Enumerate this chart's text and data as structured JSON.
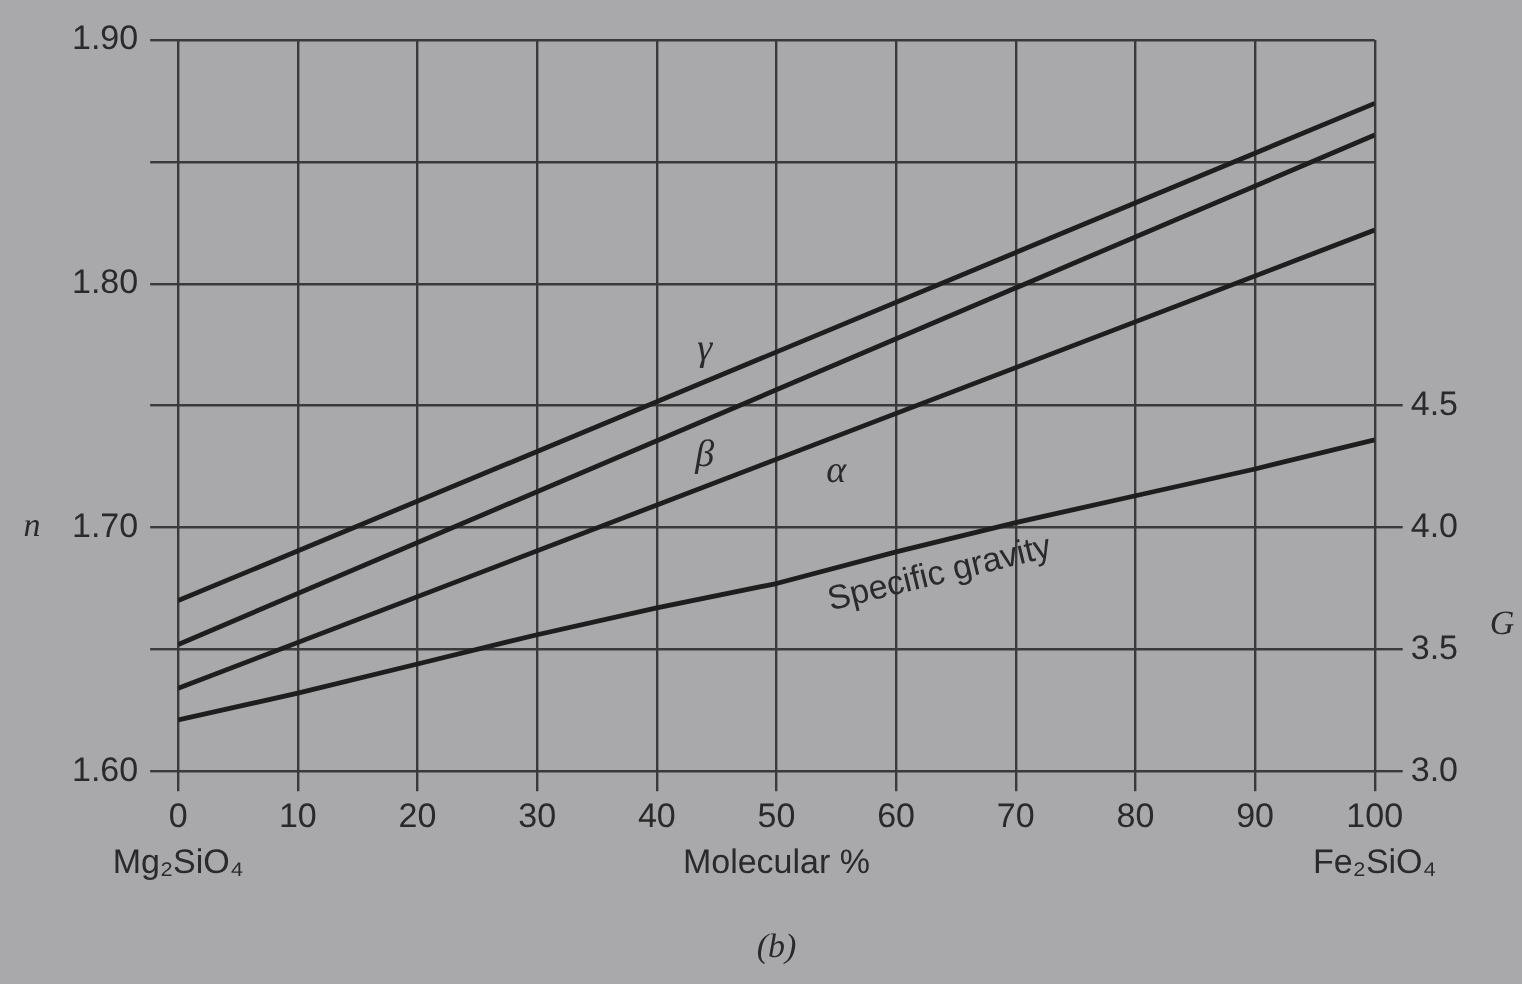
{
  "chart_data": {
    "type": "line",
    "xlabel": "Molecular %",
    "ylabel": "n",
    "y2label": "G",
    "xlim": [
      0,
      100
    ],
    "xticks": [
      0,
      10,
      20,
      30,
      40,
      50,
      60,
      70,
      80,
      90,
      100
    ],
    "ylim": [
      1.6,
      1.9
    ],
    "yticks": [
      {
        "value": 1.6,
        "label": "1.60"
      },
      {
        "value": 1.65,
        "label": null
      },
      {
        "value": 1.7,
        "label": "1.70"
      },
      {
        "value": 1.75,
        "label": null
      },
      {
        "value": 1.8,
        "label": "1.80"
      },
      {
        "value": 1.85,
        "label": null
      },
      {
        "value": 1.9,
        "label": "1.90"
      }
    ],
    "y2lim": [
      3.0,
      6.0
    ],
    "y2ticks": [
      {
        "value": 3.0,
        "label": "3.0"
      },
      {
        "value": 3.5,
        "label": "3.5"
      },
      {
        "value": 4.0,
        "label": "4.0"
      },
      {
        "value": 4.5,
        "label": "4.5"
      }
    ],
    "grid": true,
    "legend": false,
    "marker": "none",
    "line_style": "solid",
    "series": [
      {
        "name": "γ",
        "color": "#1e1e1e",
        "x": [
          0,
          100
        ],
        "values": [
          1.67,
          1.874
        ]
      },
      {
        "name": "β",
        "color": "#1e1e1e",
        "x": [
          0,
          100
        ],
        "values": [
          1.652,
          1.861
        ]
      },
      {
        "name": "α",
        "color": "#1e1e1e",
        "x": [
          0,
          100
        ],
        "values": [
          1.634,
          1.822
        ]
      },
      {
        "name": "Specific gravity",
        "color": "#1e1e1e",
        "axis": "y2",
        "x": [
          0,
          10,
          20,
          30,
          40,
          50,
          60,
          70,
          80,
          90,
          100
        ],
        "values": [
          3.21,
          3.32,
          3.44,
          3.56,
          3.67,
          3.77,
          3.9,
          4.02,
          4.13,
          4.24,
          4.36
        ]
      }
    ],
    "annotations": [
      "Mg₂SiO₄",
      "Fe₂SiO₄",
      "(b)"
    ]
  }
}
